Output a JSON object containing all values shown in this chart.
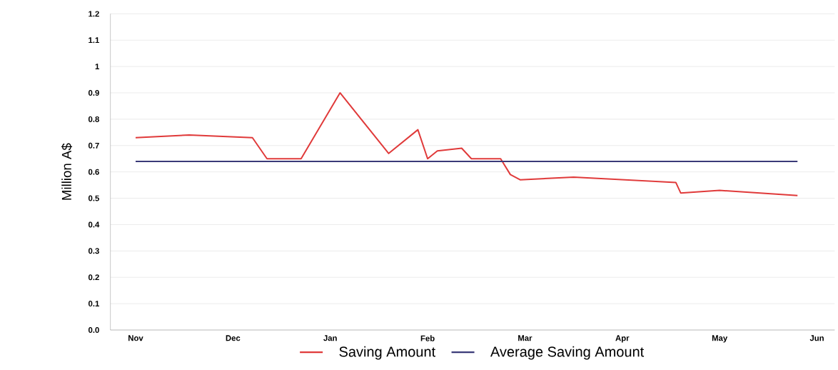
{
  "chart_data": {
    "type": "line",
    "ylabel": "Million A$",
    "categories": [
      "Nov",
      null,
      null,
      null,
      null,
      null,
      null,
      null,
      null,
      null,
      null,
      null,
      null,
      null,
      null,
      null,
      null,
      null,
      null,
      null,
      "Dec",
      null,
      null,
      null,
      null,
      null,
      null,
      null,
      null,
      null,
      null,
      null,
      null,
      null,
      null,
      null,
      null,
      null,
      null,
      null,
      "Jan",
      null,
      null,
      null,
      null,
      null,
      null,
      null,
      null,
      null,
      null,
      null,
      null,
      null,
      null,
      null,
      null,
      null,
      null,
      null,
      "Feb",
      null,
      null,
      null,
      null,
      null,
      null,
      null,
      null,
      null,
      null,
      null,
      null,
      null,
      null,
      null,
      null,
      null,
      null,
      null,
      "Mar",
      null,
      null,
      null,
      null,
      null,
      null,
      null,
      null,
      null,
      null,
      null,
      null,
      null,
      null,
      null,
      null,
      null,
      null,
      null,
      "Apr",
      null,
      null,
      null,
      null,
      null,
      null,
      null,
      null,
      null,
      null,
      null,
      null,
      null,
      null,
      null,
      null,
      null,
      null,
      null,
      "May",
      null,
      null,
      null,
      null,
      null,
      null,
      null,
      null,
      null,
      null,
      null,
      null,
      null,
      null,
      null,
      null,
      null,
      null,
      null,
      "Jun"
    ],
    "ylim": [
      0,
      1.2
    ],
    "yticks": [
      {
        "value": 0,
        "label": "0.0"
      },
      {
        "value": 0.1,
        "label": "0.1"
      },
      {
        "value": 0.2,
        "label": "0.2"
      },
      {
        "value": 0.3,
        "label": "0.3"
      },
      {
        "value": 0.4,
        "label": "0.4"
      },
      {
        "value": 0.5,
        "label": "0.5"
      },
      {
        "value": 0.6,
        "label": "0.6"
      },
      {
        "value": 0.7,
        "label": "0.7"
      },
      {
        "value": 0.8,
        "label": "0.8"
      },
      {
        "value": 0.9,
        "label": "0.9"
      },
      {
        "value": 1,
        "label": "1"
      },
      {
        "value": 1.1,
        "label": "1.1"
      },
      {
        "value": 1.2,
        "label": "1.2"
      }
    ],
    "grid": "y",
    "legend": "bottom",
    "marker": "none",
    "line_style": "solid",
    "series": [
      {
        "name": "Saving Amount",
        "color": "#e03a3a",
        "values": [
          0.73,
          null,
          null,
          null,
          null,
          null,
          null,
          null,
          null,
          null,
          null,
          0.74,
          null,
          null,
          null,
          null,
          null,
          null,
          null,
          null,
          null,
          null,
          null,
          null,
          0.73,
          null,
          null,
          0.65,
          null,
          null,
          null,
          null,
          null,
          null,
          0.65,
          null,
          null,
          null,
          null,
          null,
          null,
          null,
          0.9,
          null,
          null,
          null,
          null,
          null,
          null,
          null,
          null,
          null,
          0.67,
          null,
          null,
          null,
          null,
          null,
          0.76,
          null,
          0.65,
          null,
          0.68,
          null,
          null,
          null,
          null,
          0.69,
          null,
          0.65,
          null,
          null,
          null,
          null,
          null,
          0.65,
          null,
          0.59,
          null,
          0.57,
          null,
          null,
          null,
          null,
          null,
          null,
          null,
          null,
          null,
          null,
          0.58,
          null,
          null,
          null,
          null,
          null,
          null,
          null,
          null,
          null,
          null,
          null,
          null,
          null,
          null,
          null,
          null,
          null,
          null,
          null,
          null,
          0.56,
          0.52,
          null,
          null,
          null,
          null,
          null,
          null,
          null,
          0.53,
          null,
          null,
          null,
          null,
          null,
          null,
          null,
          null,
          null,
          null,
          null,
          null,
          null,
          null,
          null,
          0.51,
          null,
          null,
          null,
          null
        ]
      },
      {
        "name": "Average Saving Amount",
        "color": "#3a3a78",
        "values": [
          0.64,
          null,
          null,
          null,
          null,
          null,
          null,
          null,
          null,
          null,
          null,
          null,
          null,
          null,
          null,
          null,
          null,
          null,
          null,
          null,
          null,
          null,
          null,
          null,
          null,
          null,
          null,
          null,
          null,
          null,
          null,
          null,
          null,
          null,
          null,
          null,
          null,
          null,
          null,
          null,
          null,
          null,
          null,
          null,
          null,
          null,
          null,
          null,
          null,
          null,
          null,
          null,
          null,
          null,
          null,
          null,
          null,
          null,
          null,
          null,
          null,
          null,
          null,
          null,
          null,
          null,
          null,
          null,
          null,
          null,
          null,
          null,
          null,
          null,
          null,
          null,
          null,
          null,
          null,
          null,
          null,
          null,
          null,
          null,
          null,
          null,
          null,
          null,
          null,
          null,
          null,
          null,
          null,
          null,
          null,
          null,
          null,
          null,
          null,
          null,
          null,
          null,
          null,
          null,
          null,
          null,
          null,
          null,
          null,
          null,
          null,
          null,
          null,
          null,
          null,
          null,
          null,
          null,
          null,
          null,
          null,
          null,
          null,
          null,
          null,
          null,
          null,
          null,
          null,
          null,
          null,
          null,
          null,
          null,
          null,
          null,
          0.64,
          null,
          null,
          null,
          null
        ]
      }
    ]
  }
}
